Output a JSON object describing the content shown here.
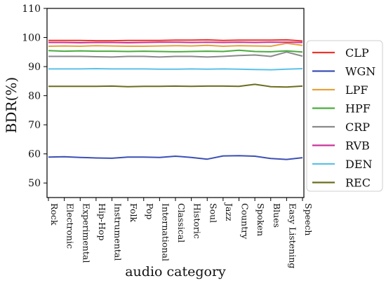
{
  "chart_data": {
    "type": "line",
    "title": "",
    "xlabel": "audio category",
    "ylabel": "BDR(%)",
    "ylim": [
      45,
      110
    ],
    "yticks": [
      50,
      60,
      70,
      80,
      90,
      100,
      110
    ],
    "grid": false,
    "legend_position": "right",
    "categories": [
      "Rock",
      "Electronic",
      "Experimental",
      "Hip-Hop",
      "Instrumental",
      "Folk",
      "Pop",
      "International",
      "Classical",
      "Historic",
      "Soul",
      "Jazz",
      "Country",
      "Spoken",
      "Blues",
      "Easy Listening",
      "Speech"
    ],
    "series": [
      {
        "name": "CLP",
        "color": "#e8372b",
        "values": [
          99.0,
          99.0,
          99.0,
          98.9,
          98.9,
          99.0,
          99.0,
          99.0,
          99.1,
          99.1,
          99.2,
          99.0,
          99.1,
          99.1,
          99.1,
          99.2,
          98.8
        ]
      },
      {
        "name": "WGN",
        "color": "#3c4fb5",
        "values": [
          58.9,
          59.0,
          58.8,
          58.6,
          58.5,
          58.9,
          58.9,
          58.8,
          59.2,
          58.8,
          58.2,
          59.3,
          59.4,
          59.2,
          58.4,
          58.1,
          58.7
        ]
      },
      {
        "name": "LPF",
        "color": "#e6a23c",
        "values": [
          97.0,
          97.1,
          97.0,
          97.2,
          97.1,
          97.0,
          97.0,
          97.1,
          97.2,
          97.1,
          97.3,
          97.0,
          97.2,
          97.1,
          97.0,
          98.0,
          97.3
        ]
      },
      {
        "name": "HPF",
        "color": "#4aac3e",
        "values": [
          95.5,
          95.3,
          95.4,
          95.3,
          95.3,
          95.2,
          95.3,
          95.2,
          95.1,
          95.2,
          95.3,
          95.2,
          95.6,
          95.2,
          95.1,
          95.4,
          95.0
        ]
      },
      {
        "name": "CRP",
        "color": "#8a8a8a",
        "values": [
          93.5,
          93.5,
          93.5,
          93.4,
          93.3,
          93.5,
          93.5,
          93.3,
          93.5,
          93.5,
          93.3,
          93.5,
          93.8,
          94.0,
          93.5,
          95.0,
          93.6
        ]
      },
      {
        "name": "RVB",
        "color": "#c8339a",
        "values": [
          98.3,
          98.3,
          98.2,
          98.3,
          98.3,
          98.2,
          98.3,
          98.4,
          98.4,
          98.3,
          98.4,
          98.3,
          98.4,
          98.3,
          98.4,
          98.4,
          98.3
        ]
      },
      {
        "name": "DEN",
        "color": "#5bc1e8",
        "values": [
          89.2,
          89.2,
          89.2,
          89.3,
          89.2,
          89.2,
          89.2,
          89.1,
          89.1,
          89.2,
          89.1,
          89.2,
          89.1,
          89.0,
          88.9,
          89.1,
          89.3
        ]
      },
      {
        "name": "REC",
        "color": "#6b6d1e",
        "values": [
          83.2,
          83.2,
          83.2,
          83.2,
          83.3,
          83.1,
          83.2,
          83.2,
          83.3,
          83.2,
          83.3,
          83.3,
          83.2,
          83.9,
          83.1,
          83.0,
          83.3
        ]
      }
    ]
  }
}
